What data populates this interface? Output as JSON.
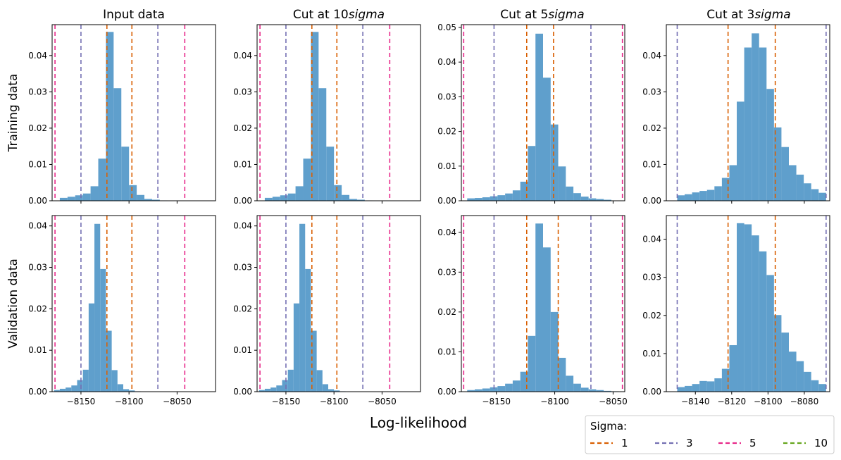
{
  "figure": {
    "xlabel": "Log-likelihood",
    "row_labels": [
      "Training data",
      "Validation data"
    ],
    "column_titles": [
      {
        "prefix": "Input data",
        "italic": ""
      },
      {
        "prefix": "Cut at 10",
        "italic": "sigma"
      },
      {
        "prefix": "Cut at 5",
        "italic": "sigma"
      },
      {
        "prefix": "Cut at 3",
        "italic": "sigma"
      }
    ]
  },
  "legend": {
    "title": "Sigma:",
    "location": "bottom-right",
    "entries": [
      {
        "label": "1",
        "color": "#d95f02"
      },
      {
        "label": "3",
        "color": "#7570b3"
      },
      {
        "label": "5",
        "color": "#e7298a"
      },
      {
        "label": "10",
        "color": "#66a61e"
      }
    ]
  },
  "colors": {
    "bars": "#5f9fcc"
  },
  "chart_data": [
    {
      "type": "bar",
      "row": 0,
      "col": 0,
      "xlim": [
        -8180,
        -8010
      ],
      "ylim": [
        0,
        0.0485
      ],
      "xticks": [
        -8150,
        -8100,
        -8050
      ],
      "show_xticklabels": false,
      "yticks": [
        0,
        0.01,
        0.02,
        0.03,
        0.04
      ],
      "bin_start": -8172,
      "bin_width": 8,
      "values": [
        0.0008,
        0.0011,
        0.0015,
        0.002,
        0.004,
        0.0116,
        0.0465,
        0.031,
        0.0149,
        0.0043,
        0.0016,
        0.0005,
        0.0003,
        0.0001
      ],
      "vlines": [
        {
          "x": -8123,
          "sigma": "1"
        },
        {
          "x": -8097,
          "sigma": "1"
        },
        {
          "x": -8150,
          "sigma": "3"
        },
        {
          "x": -8070,
          "sigma": "3"
        },
        {
          "x": -8177,
          "sigma": "5"
        },
        {
          "x": -8042,
          "sigma": "5"
        }
      ]
    },
    {
      "type": "bar",
      "row": 0,
      "col": 1,
      "xlim": [
        -8180,
        -8010
      ],
      "ylim": [
        0,
        0.0485
      ],
      "xticks": [
        -8150,
        -8100,
        -8050
      ],
      "show_xticklabels": false,
      "yticks": [
        0,
        0.01,
        0.02,
        0.03,
        0.04
      ],
      "bin_start": -8172,
      "bin_width": 8,
      "values": [
        0.0008,
        0.0011,
        0.0015,
        0.002,
        0.004,
        0.0116,
        0.0465,
        0.031,
        0.0149,
        0.0043,
        0.0016,
        0.0005,
        0.0003,
        0.0001
      ],
      "vlines": [
        {
          "x": -8123,
          "sigma": "1"
        },
        {
          "x": -8097,
          "sigma": "1"
        },
        {
          "x": -8150,
          "sigma": "3"
        },
        {
          "x": -8070,
          "sigma": "3"
        },
        {
          "x": -8177,
          "sigma": "5"
        },
        {
          "x": -8042,
          "sigma": "5"
        }
      ]
    },
    {
      "type": "bar",
      "row": 0,
      "col": 2,
      "xlim": [
        -8180,
        -8040
      ],
      "ylim": [
        0,
        0.0508
      ],
      "xticks": [
        -8150,
        -8100,
        -8050
      ],
      "show_xticklabels": false,
      "yticks": [
        0,
        0.01,
        0.02,
        0.03,
        0.04,
        0.05
      ],
      "bin_start": -8175,
      "bin_width": 6.5,
      "values": [
        0.0007,
        0.0008,
        0.001,
        0.0013,
        0.0016,
        0.0021,
        0.003,
        0.0055,
        0.0158,
        0.0482,
        0.0355,
        0.022,
        0.0099,
        0.0041,
        0.0022,
        0.0012,
        0.0007,
        0.0005,
        0.0003,
        0.0001
      ],
      "vlines": [
        {
          "x": -8124,
          "sigma": "1"
        },
        {
          "x": -8101,
          "sigma": "1"
        },
        {
          "x": -8152,
          "sigma": "3"
        },
        {
          "x": -8069,
          "sigma": "3"
        },
        {
          "x": -8178,
          "sigma": "5"
        },
        {
          "x": -8042,
          "sigma": "5"
        }
      ]
    },
    {
      "type": "bar",
      "row": 0,
      "col": 3,
      "xlim": [
        -8156,
        -8066
      ],
      "ylim": [
        0,
        0.0485
      ],
      "xticks": [
        -8140,
        -8120,
        -8100,
        -8080
      ],
      "show_xticklabels": false,
      "yticks": [
        0,
        0.01,
        0.02,
        0.03,
        0.04
      ],
      "bin_start": -8150,
      "bin_width": 4.1,
      "values": [
        0.0015,
        0.0018,
        0.0023,
        0.0027,
        0.003,
        0.004,
        0.0063,
        0.0098,
        0.0273,
        0.0422,
        0.0461,
        0.0422,
        0.0308,
        0.0202,
        0.0148,
        0.0098,
        0.0072,
        0.0048,
        0.0032,
        0.0022
      ],
      "vlines": [
        {
          "x": -8122,
          "sigma": "1"
        },
        {
          "x": -8096,
          "sigma": "1"
        },
        {
          "x": -8150,
          "sigma": "3"
        },
        {
          "x": -8068,
          "sigma": "3"
        }
      ]
    },
    {
      "type": "bar",
      "row": 1,
      "col": 0,
      "xlim": [
        -8180,
        -8010
      ],
      "ylim": [
        0,
        0.0425
      ],
      "xticks": [
        -8150,
        -8100,
        -8050
      ],
      "show_xticklabels": true,
      "yticks": [
        0,
        0.01,
        0.02,
        0.03,
        0.04
      ],
      "bin_start": -8172,
      "bin_width": 8,
      "values": [
        0.0004,
        0.0007,
        0.001,
        0.0015,
        0.0028,
        0.0053,
        0.0213,
        0.0405,
        0.0296,
        0.0147,
        0.0052,
        0.0018,
        0.0006,
        0.0003,
        0.0001
      ],
      "bin_start_override": -8178,
      "bin_width_override": 6,
      "vlines": [
        {
          "x": -8123,
          "sigma": "1"
        },
        {
          "x": -8097,
          "sigma": "1"
        },
        {
          "x": -8150,
          "sigma": "3"
        },
        {
          "x": -8070,
          "sigma": "3"
        },
        {
          "x": -8177,
          "sigma": "5"
        },
        {
          "x": -8042,
          "sigma": "5"
        }
      ]
    },
    {
      "type": "bar",
      "row": 1,
      "col": 1,
      "xlim": [
        -8180,
        -8010
      ],
      "ylim": [
        0,
        0.0425
      ],
      "xticks": [
        -8150,
        -8100,
        -8050
      ],
      "show_xticklabels": true,
      "yticks": [
        0,
        0.01,
        0.02,
        0.03,
        0.04
      ],
      "bin_start": -8172,
      "bin_width": 8,
      "values": [
        0.0004,
        0.0007,
        0.001,
        0.0015,
        0.0028,
        0.0053,
        0.0213,
        0.0405,
        0.0296,
        0.0147,
        0.0052,
        0.0018,
        0.0006,
        0.0003,
        0.0001
      ],
      "bin_start_override": -8178,
      "bin_width_override": 6,
      "vlines": [
        {
          "x": -8123,
          "sigma": "1"
        },
        {
          "x": -8097,
          "sigma": "1"
        },
        {
          "x": -8150,
          "sigma": "3"
        },
        {
          "x": -8070,
          "sigma": "3"
        },
        {
          "x": -8177,
          "sigma": "5"
        },
        {
          "x": -8042,
          "sigma": "5"
        }
      ]
    },
    {
      "type": "bar",
      "row": 1,
      "col": 2,
      "xlim": [
        -8180,
        -8040
      ],
      "ylim": [
        0,
        0.0442
      ],
      "xticks": [
        -8150,
        -8100,
        -8050
      ],
      "show_xticklabels": true,
      "yticks": [
        0,
        0.01,
        0.02,
        0.03,
        0.04
      ],
      "bin_start": -8175,
      "bin_width": 6.5,
      "values": [
        0.0004,
        0.0006,
        0.0008,
        0.0011,
        0.0014,
        0.002,
        0.0028,
        0.005,
        0.014,
        0.0422,
        0.0362,
        0.02,
        0.0085,
        0.004,
        0.002,
        0.001,
        0.0006,
        0.0004,
        0.0002,
        0.0001
      ],
      "vlines": [
        {
          "x": -8124,
          "sigma": "1"
        },
        {
          "x": -8097,
          "sigma": "1"
        },
        {
          "x": -8152,
          "sigma": "3"
        },
        {
          "x": -8069,
          "sigma": "3"
        },
        {
          "x": -8178,
          "sigma": "5"
        },
        {
          "x": -8042,
          "sigma": "5"
        }
      ]
    },
    {
      "type": "bar",
      "row": 1,
      "col": 3,
      "xlim": [
        -8156,
        -8066
      ],
      "ylim": [
        0,
        0.0462
      ],
      "xticks": [
        -8140,
        -8120,
        -8100,
        -8080
      ],
      "show_xticklabels": true,
      "yticks": [
        0,
        0.01,
        0.02,
        0.03,
        0.04
      ],
      "bin_start": -8150,
      "bin_width": 4.1,
      "values": [
        0.0012,
        0.0015,
        0.002,
        0.0028,
        0.0027,
        0.0035,
        0.006,
        0.0122,
        0.0442,
        0.0439,
        0.041,
        0.0368,
        0.0306,
        0.0201,
        0.0155,
        0.0105,
        0.008,
        0.0052,
        0.003,
        0.002
      ],
      "vlines": [
        {
          "x": -8122,
          "sigma": "1"
        },
        {
          "x": -8096,
          "sigma": "1"
        },
        {
          "x": -8150,
          "sigma": "3"
        },
        {
          "x": -8068,
          "sigma": "3"
        }
      ]
    }
  ]
}
